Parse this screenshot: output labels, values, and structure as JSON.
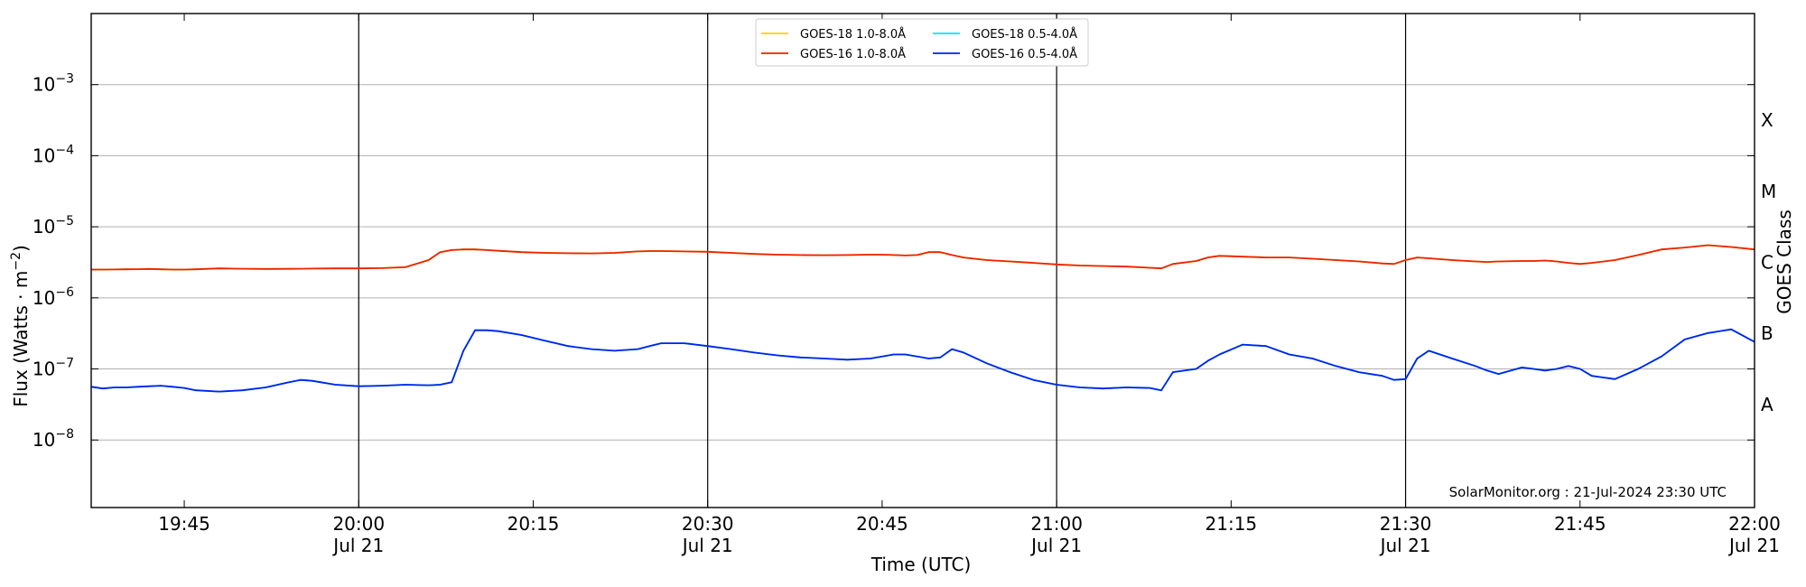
{
  "chart_data": {
    "type": "line",
    "xlabel": "Time (UTC)",
    "ylabel_main": "Flux (Watts · m",
    "ylabel_sup": "−2",
    "ylabel_close": ")",
    "right_label": "GOES Class",
    "credit": "SolarMonitor.org : 21-Jul-2024 23:30 UTC",
    "x_range_minutes": [
      "19:37",
      "22:00"
    ],
    "y_log_range": [
      -8.95,
      -2.0
    ],
    "grid": "horizontal at decades",
    "legend_position": "top-center",
    "y_ticks": [
      {
        "exp": -3,
        "base": "10",
        "sup": "−3"
      },
      {
        "exp": -4,
        "base": "10",
        "sup": "−4"
      },
      {
        "exp": -5,
        "base": "10",
        "sup": "−5"
      },
      {
        "exp": -6,
        "base": "10",
        "sup": "−6"
      },
      {
        "exp": -7,
        "base": "10",
        "sup": "−7"
      },
      {
        "exp": -8,
        "base": "10",
        "sup": "−8"
      }
    ],
    "x_ticks": [
      {
        "time": "19:45",
        "label": "19:45",
        "sub": ""
      },
      {
        "time": "20:00",
        "label": "20:00",
        "sub": "Jul 21"
      },
      {
        "time": "20:15",
        "label": "20:15",
        "sub": ""
      },
      {
        "time": "20:30",
        "label": "20:30",
        "sub": "Jul 21"
      },
      {
        "time": "20:45",
        "label": "20:45",
        "sub": ""
      },
      {
        "time": "21:00",
        "label": "21:00",
        "sub": "Jul 21"
      },
      {
        "time": "21:15",
        "label": "21:15",
        "sub": ""
      },
      {
        "time": "21:30",
        "label": "21:30",
        "sub": "Jul 21"
      },
      {
        "time": "21:45",
        "label": "21:45",
        "sub": ""
      },
      {
        "time": "22:00",
        "label": "22:00",
        "sub": "Jul 21"
      }
    ],
    "vertical_lines": [
      "20:00",
      "20:30",
      "21:00",
      "21:30"
    ],
    "goes_classes": [
      {
        "label": "X",
        "log_center": -3.5
      },
      {
        "label": "M",
        "log_center": -4.5
      },
      {
        "label": "C",
        "log_center": -5.5
      },
      {
        "label": "B",
        "log_center": -6.5
      },
      {
        "label": "A",
        "log_center": -7.5
      }
    ],
    "x": [
      "19:37",
      "19:38",
      "19:39",
      "19:40",
      "19:41",
      "19:42",
      "19:43",
      "19:44",
      "19:45",
      "19:46",
      "19:48",
      "19:50",
      "19:52",
      "19:54",
      "19:55",
      "19:56",
      "19:58",
      "20:00",
      "20:02",
      "20:04",
      "20:06",
      "20:07",
      "20:08",
      "20:09",
      "20:10",
      "20:11",
      "20:12",
      "20:14",
      "20:16",
      "20:18",
      "20:20",
      "20:22",
      "20:24",
      "20:25",
      "20:26",
      "20:28",
      "20:30",
      "20:32",
      "20:34",
      "20:36",
      "20:38",
      "20:40",
      "20:42",
      "20:44",
      "20:45",
      "20:46",
      "20:47",
      "20:48",
      "20:49",
      "20:50",
      "20:51",
      "20:52",
      "20:54",
      "20:56",
      "20:58",
      "21:00",
      "21:02",
      "21:04",
      "21:06",
      "21:08",
      "21:09",
      "21:10",
      "21:12",
      "21:13",
      "21:14",
      "21:16",
      "21:18",
      "21:20",
      "21:22",
      "21:24",
      "21:26",
      "21:28",
      "21:29",
      "21:30",
      "21:31",
      "21:32",
      "21:34",
      "21:36",
      "21:37",
      "21:38",
      "21:40",
      "21:41",
      "21:42",
      "21:43",
      "21:44",
      "21:45",
      "21:46",
      "21:48",
      "21:50",
      "21:52",
      "21:54",
      "21:56",
      "21:58",
      "22:00"
    ],
    "series": [
      {
        "name": "GOES-18 1.0-8.0Å",
        "color": "#ffd000",
        "values": [
          2.5e-06,
          2.5e-06,
          2.51e-06,
          2.52e-06,
          2.53e-06,
          2.55e-06,
          2.52e-06,
          2.5e-06,
          2.5e-06,
          2.52e-06,
          2.6e-06,
          2.57e-06,
          2.55e-06,
          2.56e-06,
          2.57e-06,
          2.58e-06,
          2.6e-06,
          2.6e-06,
          2.62e-06,
          2.7e-06,
          3.4e-06,
          4.4e-06,
          4.7e-06,
          4.8e-06,
          4.8e-06,
          4.7e-06,
          4.6e-06,
          4.4e-06,
          4.3e-06,
          4.25e-06,
          4.22e-06,
          4.3e-06,
          4.5e-06,
          4.55e-06,
          4.55e-06,
          4.5e-06,
          4.45e-06,
          4.3e-06,
          4.15e-06,
          4.05e-06,
          4e-06,
          3.98e-06,
          4e-06,
          4.05e-06,
          4.05e-06,
          4e-06,
          3.95e-06,
          4e-06,
          4.4e-06,
          4.4e-06,
          4e-06,
          3.7e-06,
          3.4e-06,
          3.25e-06,
          3.1e-06,
          2.95e-06,
          2.85e-06,
          2.8e-06,
          2.75e-06,
          2.65e-06,
          2.6e-06,
          3e-06,
          3.3e-06,
          3.7e-06,
          3.9e-06,
          3.8e-06,
          3.7e-06,
          3.7e-06,
          3.55e-06,
          3.4e-06,
          3.25e-06,
          3.05e-06,
          3e-06,
          3.4e-06,
          3.7e-06,
          3.6e-06,
          3.4e-06,
          3.25e-06,
          3.2e-06,
          3.25e-06,
          3.3e-06,
          3.3e-06,
          3.35e-06,
          3.25e-06,
          3.1e-06,
          3e-06,
          3.1e-06,
          3.4e-06,
          4e-06,
          4.8e-06,
          5.1e-06,
          5.5e-06,
          5.2e-06,
          4.8e-06
        ]
      },
      {
        "name": "GOES-16 1.0-8.0Å",
        "color": "#ee2200",
        "values": [
          2.5e-06,
          2.5e-06,
          2.51e-06,
          2.52e-06,
          2.53e-06,
          2.55e-06,
          2.52e-06,
          2.5e-06,
          2.5e-06,
          2.52e-06,
          2.6e-06,
          2.57e-06,
          2.55e-06,
          2.56e-06,
          2.57e-06,
          2.58e-06,
          2.6e-06,
          2.6e-06,
          2.62e-06,
          2.7e-06,
          3.4e-06,
          4.4e-06,
          4.7e-06,
          4.8e-06,
          4.8e-06,
          4.7e-06,
          4.6e-06,
          4.4e-06,
          4.3e-06,
          4.25e-06,
          4.22e-06,
          4.3e-06,
          4.5e-06,
          4.55e-06,
          4.55e-06,
          4.5e-06,
          4.45e-06,
          4.3e-06,
          4.15e-06,
          4.05e-06,
          4e-06,
          3.98e-06,
          4e-06,
          4.05e-06,
          4.05e-06,
          4e-06,
          3.95e-06,
          4e-06,
          4.4e-06,
          4.4e-06,
          4e-06,
          3.7e-06,
          3.4e-06,
          3.25e-06,
          3.1e-06,
          2.95e-06,
          2.85e-06,
          2.8e-06,
          2.75e-06,
          2.65e-06,
          2.6e-06,
          3e-06,
          3.3e-06,
          3.7e-06,
          3.9e-06,
          3.8e-06,
          3.7e-06,
          3.7e-06,
          3.55e-06,
          3.4e-06,
          3.25e-06,
          3.05e-06,
          3e-06,
          3.4e-06,
          3.7e-06,
          3.6e-06,
          3.4e-06,
          3.25e-06,
          3.2e-06,
          3.25e-06,
          3.3e-06,
          3.3e-06,
          3.35e-06,
          3.25e-06,
          3.1e-06,
          3e-06,
          3.1e-06,
          3.4e-06,
          4e-06,
          4.8e-06,
          5.1e-06,
          5.5e-06,
          5.2e-06,
          4.8e-06
        ]
      },
      {
        "name": "GOES-18 0.5-4.0Å",
        "color": "#00e5ff",
        "values": [
          5.6e-08,
          5.3e-08,
          5.5e-08,
          5.5e-08,
          5.6e-08,
          5.7e-08,
          5.8e-08,
          5.6e-08,
          5.4e-08,
          5e-08,
          4.8e-08,
          5e-08,
          5.5e-08,
          6.5e-08,
          7e-08,
          6.8e-08,
          6e-08,
          5.7e-08,
          5.8e-08,
          6e-08,
          5.9e-08,
          6e-08,
          6.5e-08,
          1.8e-07,
          3.5e-07,
          3.5e-07,
          3.4e-07,
          3e-07,
          2.5e-07,
          2.1e-07,
          1.9e-07,
          1.8e-07,
          1.9e-07,
          2.1e-07,
          2.3e-07,
          2.3e-07,
          2.1e-07,
          1.9e-07,
          1.7e-07,
          1.55e-07,
          1.45e-07,
          1.4e-07,
          1.35e-07,
          1.4e-07,
          1.5e-07,
          1.6e-07,
          1.6e-07,
          1.5e-07,
          1.4e-07,
          1.45e-07,
          1.9e-07,
          1.7e-07,
          1.2e-07,
          9e-08,
          7e-08,
          6e-08,
          5.5e-08,
          5.3e-08,
          5.5e-08,
          5.4e-08,
          5e-08,
          9e-08,
          1e-07,
          1.3e-07,
          1.6e-07,
          2.2e-07,
          2.1e-07,
          1.6e-07,
          1.4e-07,
          1.1e-07,
          9e-08,
          8e-08,
          7e-08,
          7.2e-08,
          1.4e-07,
          1.8e-07,
          1.4e-07,
          1.1e-07,
          9.5e-08,
          8.5e-08,
          1.05e-07,
          1e-07,
          9.5e-08,
          1e-07,
          1.1e-07,
          1e-07,
          8e-08,
          7.2e-08,
          1e-07,
          1.5e-07,
          2.6e-07,
          3.2e-07,
          3.6e-07,
          2.4e-07
        ]
      },
      {
        "name": "GOES-16 0.5-4.0Å",
        "color": "#0022ee",
        "values": [
          5.6e-08,
          5.3e-08,
          5.5e-08,
          5.5e-08,
          5.6e-08,
          5.7e-08,
          5.8e-08,
          5.6e-08,
          5.4e-08,
          5e-08,
          4.8e-08,
          5e-08,
          5.5e-08,
          6.5e-08,
          7e-08,
          6.8e-08,
          6e-08,
          5.7e-08,
          5.8e-08,
          6e-08,
          5.9e-08,
          6e-08,
          6.5e-08,
          1.8e-07,
          3.5e-07,
          3.5e-07,
          3.4e-07,
          3e-07,
          2.5e-07,
          2.1e-07,
          1.9e-07,
          1.8e-07,
          1.9e-07,
          2.1e-07,
          2.3e-07,
          2.3e-07,
          2.1e-07,
          1.9e-07,
          1.7e-07,
          1.55e-07,
          1.45e-07,
          1.4e-07,
          1.35e-07,
          1.4e-07,
          1.5e-07,
          1.6e-07,
          1.6e-07,
          1.5e-07,
          1.4e-07,
          1.45e-07,
          1.9e-07,
          1.7e-07,
          1.2e-07,
          9e-08,
          7e-08,
          6e-08,
          5.5e-08,
          5.3e-08,
          5.5e-08,
          5.4e-08,
          5e-08,
          9e-08,
          1e-07,
          1.3e-07,
          1.6e-07,
          2.2e-07,
          2.1e-07,
          1.6e-07,
          1.4e-07,
          1.1e-07,
          9e-08,
          8e-08,
          7e-08,
          7.2e-08,
          1.4e-07,
          1.8e-07,
          1.4e-07,
          1.1e-07,
          9.5e-08,
          8.5e-08,
          1.05e-07,
          1e-07,
          9.5e-08,
          1e-07,
          1.1e-07,
          1e-07,
          8e-08,
          7.2e-08,
          1e-07,
          1.5e-07,
          2.6e-07,
          3.2e-07,
          3.6e-07,
          2.4e-07
        ]
      }
    ]
  }
}
